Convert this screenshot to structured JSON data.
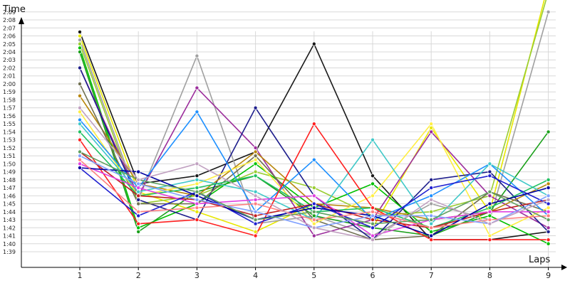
{
  "chart_data": {
    "type": "line",
    "title": "",
    "xlabel": "Laps",
    "ylabel": "Time",
    "x": [
      1,
      2,
      3,
      4,
      5,
      6,
      7,
      8,
      9
    ],
    "x_tick_labels": [
      "1",
      "2",
      "3",
      "4",
      "5",
      "6",
      "7",
      "8",
      "9"
    ],
    "y_tick_labels": [
      "1:39",
      "1:40",
      "1:41",
      "1:42",
      "1:43",
      "1:44",
      "1:45",
      "1:46",
      "1:47",
      "1:48",
      "1:49",
      "1:50",
      "1:51",
      "1:52",
      "1:53",
      "1:54",
      "1:55",
      "1:56",
      "1:57",
      "1:58",
      "1:59",
      "2:00",
      "2:01",
      "2:02",
      "2:03",
      "2:04",
      "2:05",
      "2:06",
      "2:07",
      "2:08",
      "2:09"
    ],
    "y_unit": "seconds",
    "ylim": [
      98,
      133
    ],
    "grid": true,
    "legend": "none",
    "series": [
      {
        "color": "#1a1a1a",
        "values": [
          126.5,
          107.5,
          108.5,
          111.5,
          125.0,
          108.5,
          100.5,
          100.5,
          101.5
        ]
      },
      {
        "color": "#e8e800",
        "values": [
          126.0,
          106.5,
          104.0,
          101.5,
          105.0,
          102.0,
          114.5,
          104.0,
          132.5
        ]
      },
      {
        "color": "#a0a0a0",
        "values": [
          125.5,
          105.5,
          123.5,
          102.5,
          103.5,
          101.0,
          105.0,
          103.0,
          129.0
        ]
      },
      {
        "color": "#9acd32",
        "values": [
          125.0,
          105.0,
          106.0,
          109.0,
          107.0,
          103.5,
          104.0,
          106.0,
          131.5
        ]
      },
      {
        "color": "#00c000",
        "values": [
          124.5,
          102.0,
          105.0,
          110.0,
          104.5,
          107.5,
          101.5,
          103.5,
          100.0
        ]
      },
      {
        "color": "#1aa01a",
        "values": [
          124.0,
          101.5,
          106.5,
          108.5,
          103.5,
          102.0,
          101.0,
          104.0,
          114.0
        ]
      },
      {
        "color": "#9c2e9c",
        "values": [
          122.0,
          106.0,
          119.5,
          112.0,
          101.0,
          103.0,
          114.0,
          106.0,
          102.0
        ]
      },
      {
        "color": "#1e1e8c",
        "values": [
          122.0,
          105.5,
          103.0,
          117.0,
          106.0,
          100.5,
          108.0,
          109.0,
          101.5
        ]
      },
      {
        "color": "#b8860b",
        "values": [
          118.5,
          107.5,
          106.0,
          111.5,
          105.0,
          104.5,
          103.0,
          104.0,
          107.5
        ]
      },
      {
        "color": "#707050",
        "values": [
          120.0,
          105.0,
          105.0,
          111.0,
          103.0,
          100.5,
          101.0,
          106.5,
          104.0
        ]
      },
      {
        "color": "#ffee44",
        "values": [
          116.5,
          106.0,
          107.5,
          110.5,
          102.5,
          106.0,
          115.0,
          101.0,
          104.5
        ]
      },
      {
        "color": "#1e90ff",
        "values": [
          115.5,
          107.0,
          116.5,
          104.0,
          110.5,
          103.0,
          106.0,
          110.0,
          103.5
        ]
      },
      {
        "color": "#40c8c8",
        "values": [
          115.0,
          106.5,
          108.0,
          106.5,
          103.0,
          113.0,
          102.5,
          110.0,
          106.0
        ]
      },
      {
        "color": "#20c060",
        "values": [
          114.0,
          106.0,
          107.0,
          108.5,
          104.0,
          104.5,
          102.0,
          104.5,
          108.0
        ]
      },
      {
        "color": "#ff2020",
        "values": [
          113.0,
          102.5,
          103.0,
          101.0,
          115.0,
          104.5,
          100.5,
          100.5,
          100.5
        ]
      },
      {
        "color": "#c02020",
        "values": [
          111.5,
          106.0,
          105.5,
          103.5,
          105.0,
          103.0,
          102.0,
          104.0,
          105.5
        ]
      },
      {
        "color": "#e040e0",
        "values": [
          110.0,
          107.0,
          105.0,
          105.5,
          106.0,
          101.0,
          103.0,
          104.0,
          104.0
        ]
      },
      {
        "color": "#2020d0",
        "values": [
          109.5,
          103.5,
          106.5,
          102.5,
          105.0,
          102.0,
          107.0,
          108.5,
          105.0
        ]
      },
      {
        "color": "#0000a0",
        "values": [
          109.5,
          109.0,
          106.0,
          103.0,
          104.5,
          103.5,
          101.0,
          105.0,
          107.0
        ]
      },
      {
        "color": "#ff8080",
        "values": [
          110.5,
          104.0,
          104.5,
          105.0,
          103.0,
          104.0,
          102.0,
          103.0,
          103.5
        ]
      },
      {
        "color": "#80a0ff",
        "values": [
          111.0,
          107.5,
          105.5,
          104.0,
          102.0,
          103.5,
          103.5,
          102.5,
          106.0
        ]
      },
      {
        "color": "#60a060",
        "values": [
          111.5,
          108.0,
          106.5,
          103.0,
          104.0,
          102.5,
          103.0,
          106.5,
          103.0
        ]
      },
      {
        "color": "#c0a0c0",
        "values": [
          117.0,
          108.0,
          110.0,
          106.0,
          102.0,
          100.5,
          105.5,
          102.5,
          105.5
        ]
      }
    ]
  }
}
